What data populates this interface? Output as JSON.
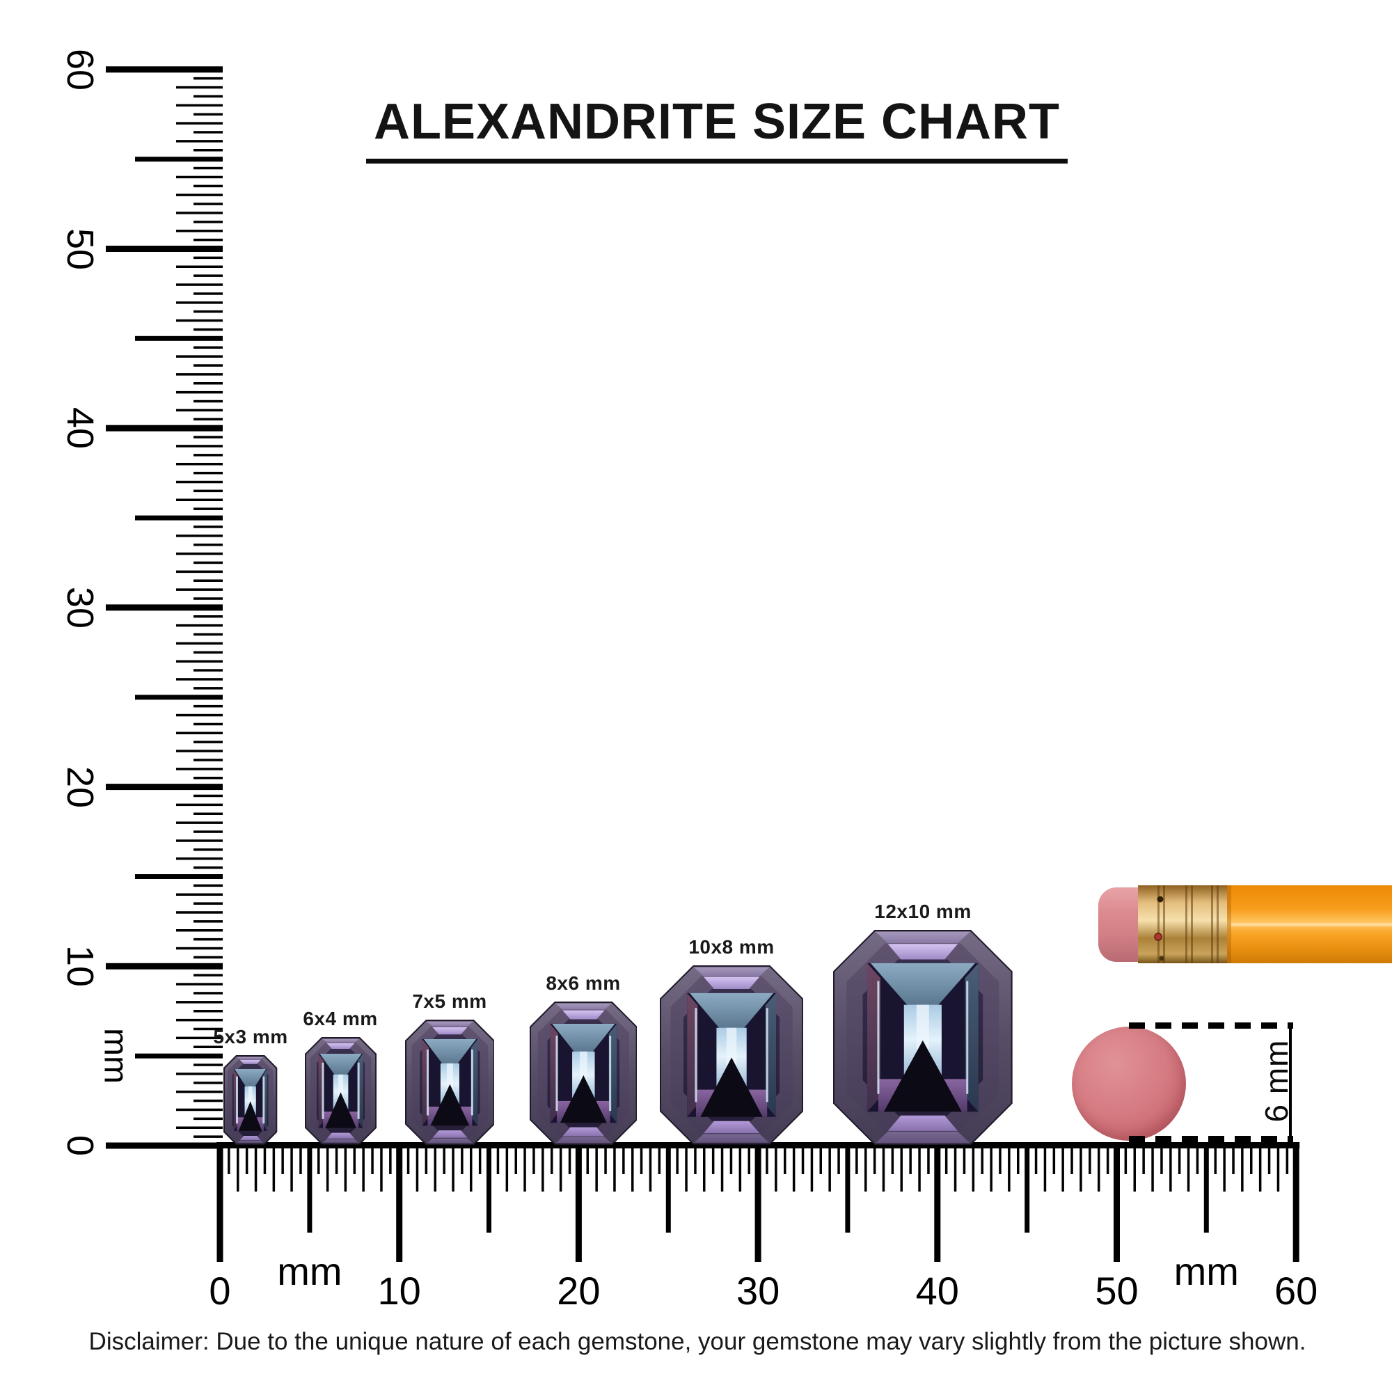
{
  "title": "ALEXANDRITE SIZE CHART",
  "vertical_ruler": {
    "unit_label": "mm",
    "tick_numbers": [
      "0",
      "10",
      "20",
      "30",
      "40",
      "50",
      "60"
    ],
    "range_mm": [
      0,
      60
    ],
    "resolution_mm": 0.5
  },
  "horizontal_ruler": {
    "unit_label": "mm",
    "tick_numbers": [
      "0",
      "10",
      "20",
      "30",
      "40",
      "50",
      "60"
    ],
    "range_mm": [
      0,
      60
    ],
    "resolution_mm": 0.5
  },
  "gems": [
    {
      "label": "5x3 mm",
      "width_mm": 3,
      "height_mm": 5
    },
    {
      "label": "6x4 mm",
      "width_mm": 4,
      "height_mm": 6
    },
    {
      "label": "7x5 mm",
      "width_mm": 5,
      "height_mm": 7
    },
    {
      "label": "8x6 mm",
      "width_mm": 6,
      "height_mm": 8
    },
    {
      "label": "10x8 mm",
      "width_mm": 8,
      "height_mm": 10
    },
    {
      "label": "12x10 mm",
      "width_mm": 10,
      "height_mm": 12
    }
  ],
  "eraser_measurement": {
    "label": "6 mm",
    "diameter_mm": 6
  },
  "disclaimer": "Disclaimer: Due to the unique nature of each gemstone, your gemstone may vary slightly from the picture shown.",
  "colors": {
    "ink": "#000000",
    "gem_outer": "#574d66",
    "gem_lavender": "#b29ad8",
    "gem_keel_blue": "#aacbe4",
    "gem_dark_core": "#191530",
    "eraser_pink": "#d57b82",
    "ferrule_brass": "#d9af6b",
    "pencil_orange": "#f89c1c"
  },
  "chart_data": {
    "type": "table",
    "title": "ALEXANDRITE SIZE CHART",
    "columns": [
      "size_label",
      "width_mm",
      "height_mm"
    ],
    "rows": [
      [
        "5x3 mm",
        3,
        5
      ],
      [
        "6x4 mm",
        4,
        6
      ],
      [
        "7x5 mm",
        5,
        7
      ],
      [
        "8x6 mm",
        6,
        8
      ],
      [
        "10x8 mm",
        8,
        10
      ],
      [
        "12x10 mm",
        10,
        12
      ]
    ],
    "reference_objects": [
      {
        "name": "pencil-with-eraser",
        "orientation": "horizontal"
      },
      {
        "name": "eraser-disc",
        "diameter_label": "6 mm"
      }
    ],
    "rulers": [
      {
        "axis": "vertical",
        "unit": "mm",
        "range": [
          0,
          60
        ]
      },
      {
        "axis": "horizontal",
        "unit": "mm",
        "range": [
          0,
          60
        ]
      }
    ]
  }
}
